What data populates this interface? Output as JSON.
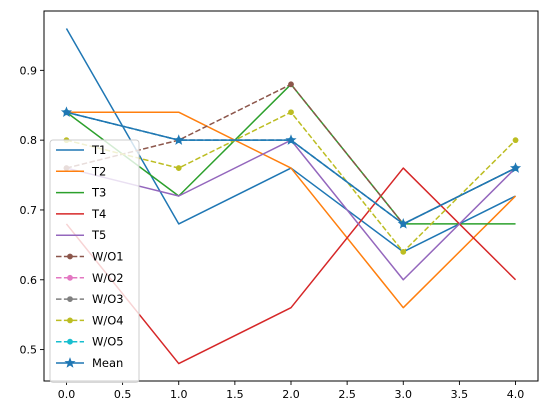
{
  "chart_data": {
    "type": "line",
    "title": "",
    "xlabel": "",
    "ylabel": "",
    "xlim": [
      -0.2,
      4.2
    ],
    "ylim": [
      0.455,
      0.985
    ],
    "xticks": [
      0.0,
      0.5,
      1.0,
      1.5,
      2.0,
      2.5,
      3.0,
      3.5,
      4.0
    ],
    "xtick_labels": [
      "0.0",
      "0.5",
      "1.0",
      "1.5",
      "2.0",
      "2.5",
      "3.0",
      "3.5",
      "4.0"
    ],
    "yticks": [
      0.5,
      0.6,
      0.7,
      0.8,
      0.9
    ],
    "ytick_labels": [
      "0.5",
      "0.6",
      "0.7",
      "0.8",
      "0.9"
    ],
    "grid": false,
    "legend_position": "lower-left",
    "x": [
      0,
      1,
      2,
      3,
      4
    ],
    "series": [
      {
        "name": "T1",
        "values": [
          0.96,
          0.68,
          0.76,
          0.64,
          0.72
        ],
        "color": "#1f77b4",
        "dash": "solid",
        "marker": "none"
      },
      {
        "name": "T2",
        "values": [
          0.84,
          0.84,
          0.76,
          0.56,
          0.72
        ],
        "color": "#ff7f0e",
        "dash": "solid",
        "marker": "none"
      },
      {
        "name": "T3",
        "values": [
          0.84,
          0.72,
          0.88,
          0.68,
          0.68
        ],
        "color": "#2ca02c",
        "dash": "solid",
        "marker": "none"
      },
      {
        "name": "T4",
        "values": [
          0.68,
          0.48,
          0.56,
          0.76,
          0.6
        ],
        "color": "#d62728",
        "dash": "solid",
        "marker": "none"
      },
      {
        "name": "T5",
        "values": [
          0.76,
          0.72,
          0.8,
          0.6,
          0.76
        ],
        "color": "#9467bd",
        "dash": "solid",
        "marker": "none"
      },
      {
        "name": "W/O1",
        "values": [
          0.76,
          0.8,
          0.88,
          0.68,
          0.76
        ],
        "color": "#8c564b",
        "dash": "dashed",
        "marker": "circle"
      },
      {
        "name": "W/O2",
        "values": [
          0.84,
          0.8,
          0.8,
          0.68,
          0.76
        ],
        "color": "#e377c2",
        "dash": "dashed",
        "marker": "circle"
      },
      {
        "name": "W/O3",
        "values": [
          0.84,
          0.8,
          0.8,
          0.68,
          0.76
        ],
        "color": "#7f7f7f",
        "dash": "dashed",
        "marker": "circle"
      },
      {
        "name": "W/O4",
        "values": [
          0.8,
          0.76,
          0.84,
          0.64,
          0.8
        ],
        "color": "#bcbd22",
        "dash": "dashed",
        "marker": "circle"
      },
      {
        "name": "W/O5",
        "values": [
          0.84,
          0.8,
          0.8,
          0.68,
          0.76
        ],
        "color": "#17becf",
        "dash": "dashed",
        "marker": "circle"
      },
      {
        "name": "Mean",
        "values": [
          0.84,
          0.8,
          0.8,
          0.68,
          0.76
        ],
        "color": "#1f77b4",
        "dash": "solid",
        "marker": "star"
      }
    ]
  }
}
